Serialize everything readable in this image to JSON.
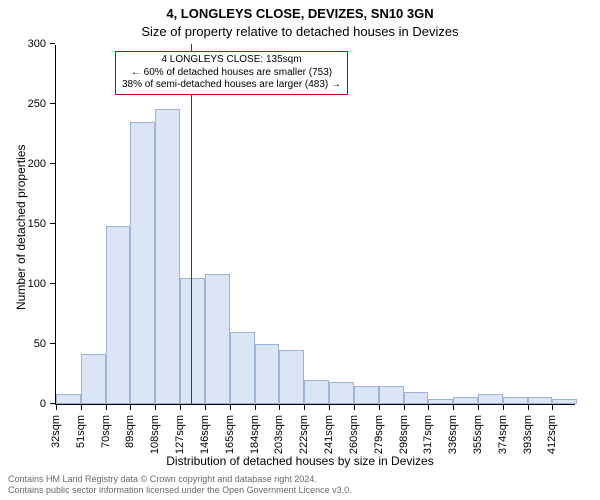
{
  "title": "4, LONGLEYS CLOSE, DEVIZES, SN10 3GN",
  "subtitle": "Size of property relative to detached houses in Devizes",
  "ylabel": "Number of detached properties",
  "xlabel": "Distribution of detached houses by size in Devizes",
  "chart": {
    "type": "histogram",
    "xlim": [
      32,
      430
    ],
    "ylim": [
      0,
      300
    ],
    "ytick_step": 50,
    "xtick_step": 19,
    "x_start": 32,
    "x_unit_suffix": "sqm",
    "bar_fill": "#dbe5f5",
    "bar_border": "#9bb4d8",
    "marker_color": "#cc0000",
    "background_color": "#ffffff",
    "label_fontsize": 12,
    "tick_fontsize": 11,
    "values": [
      8,
      42,
      148,
      235,
      246,
      105,
      108,
      60,
      50,
      45,
      20,
      18,
      15,
      15,
      10,
      4,
      6,
      8,
      6,
      6,
      4
    ],
    "marker_x": 135
  },
  "annotation": {
    "line1": "4 LONGLEYS CLOSE: 135sqm",
    "line2": "← 60% of detached houses are smaller (753)",
    "line3": "38% of semi-detached houses are larger (483) →"
  },
  "footer": {
    "line1": "Contains HM Land Registry data © Crown copyright and database right 2024.",
    "line2": "Contains public sector information licensed under the Open Government Licence v3.0."
  }
}
